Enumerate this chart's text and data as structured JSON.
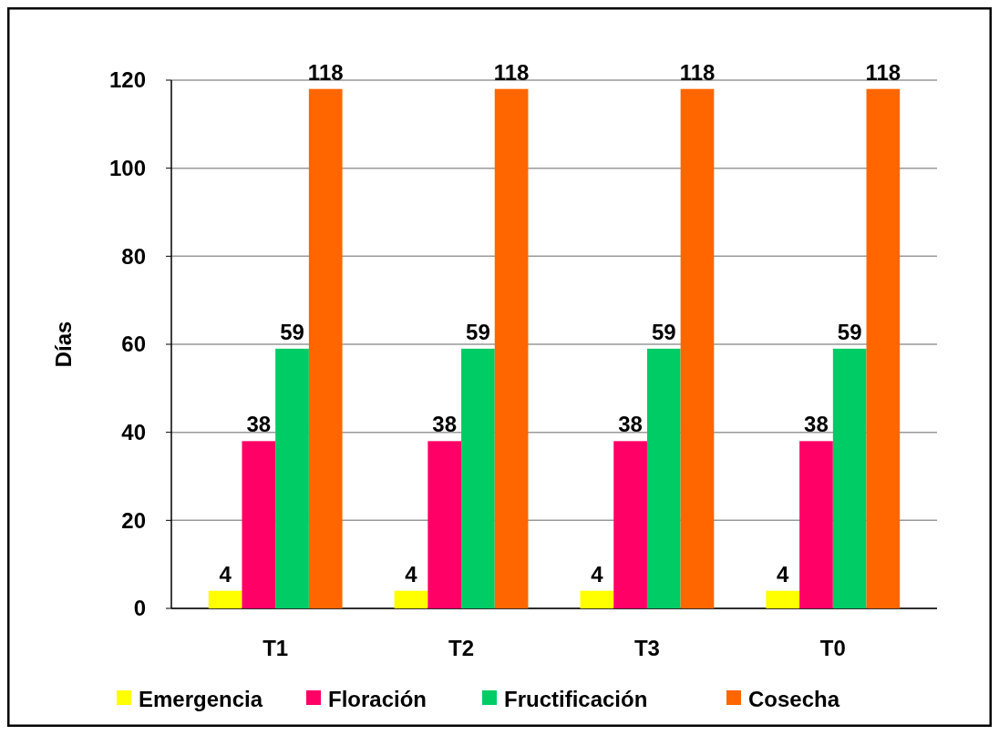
{
  "chart_data": {
    "type": "bar",
    "ylabel": "Días",
    "categories": [
      "T1",
      "T2",
      "T3",
      "T0"
    ],
    "series": [
      {
        "name": "Emergencia",
        "color": "#ffff00",
        "values": [
          4,
          4,
          4,
          4
        ]
      },
      {
        "name": "Floración",
        "color": "#ff0066",
        "values": [
          38,
          38,
          38,
          38
        ]
      },
      {
        "name": "Fructificación",
        "color": "#00cc66",
        "values": [
          59,
          59,
          59,
          59
        ]
      },
      {
        "name": "Cosecha",
        "color": "#ff6600",
        "values": [
          118,
          118,
          118,
          118
        ]
      }
    ],
    "ylim": [
      0,
      120
    ],
    "yticks": [
      0,
      20,
      40,
      60,
      80,
      100,
      120
    ],
    "grid": "y",
    "legend": "bottom",
    "data_labels": true
  }
}
